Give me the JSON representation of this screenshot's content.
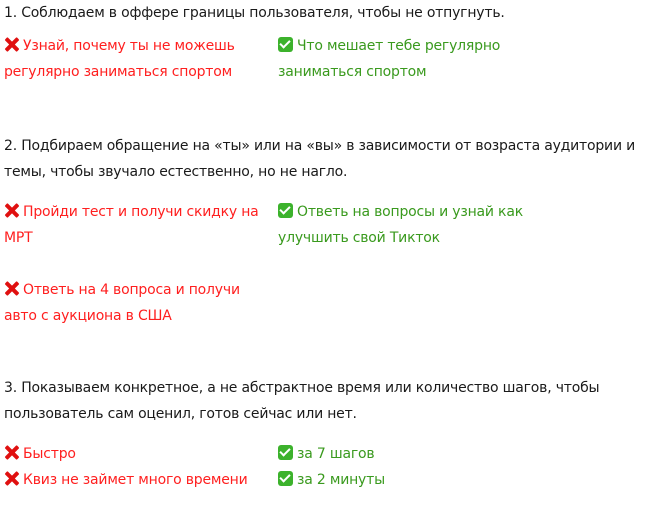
{
  "colors": {
    "bad": "#ff1f1f",
    "good": "#3a9a1e",
    "text": "#1a1a1a"
  },
  "sections": [
    {
      "heading": "1. Соблюдаем в оффере границы пользователя, чтобы не отпугнуть.",
      "bad": [
        "Узнай, почему ты не можешь регулярно заниматься спортом"
      ],
      "good": [
        "Что мешает тебе регулярно заниматься спортом"
      ]
    },
    {
      "heading": "2. Подбираем обращение на «ты» или на «вы» в зависимости от возраста аудитории и темы, чтобы звучало естественно, но не нагло.",
      "bad": [
        "Пройди тест и получи скидку на МРТ",
        "Ответь на 4 вопроса и получи авто с аукциона в США"
      ],
      "good": [
        "Ответь на вопросы и узнай как улучшить свой Тикток"
      ]
    },
    {
      "heading": "3. Показываем конкретное, а не абстрактное время или количество шагов, чтобы пользователь сам оценил, готов сейчас или нет.",
      "bad": [
        "Быстро",
        "Квиз не займет много времени"
      ],
      "good": [
        "за 7 шагов",
        "за 2 минуты"
      ]
    }
  ],
  "icons": {
    "bad": "cross-mark-icon",
    "good": "check-mark-button-icon"
  }
}
